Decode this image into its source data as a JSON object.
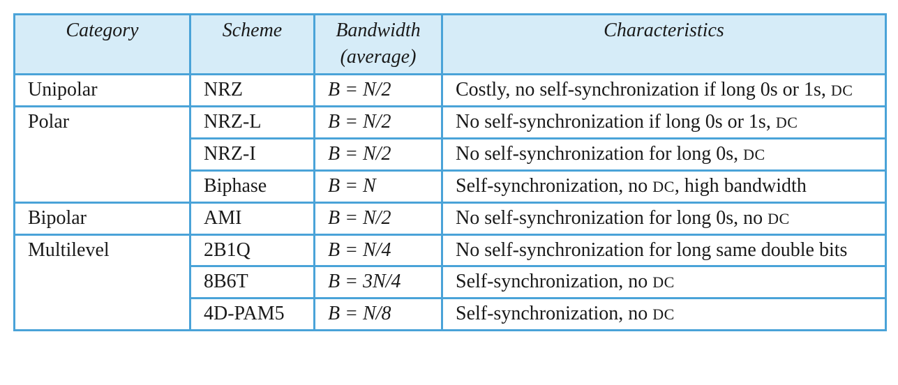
{
  "header": {
    "category": "Category",
    "scheme": "Scheme",
    "bandwidth_line1": "Bandwidth",
    "bandwidth_line2": "(average)",
    "characteristics": "Characteristics"
  },
  "rows": [
    {
      "category": "Unipolar",
      "scheme": "NRZ",
      "bandwidth": "B = N/2",
      "char_text": "Costly, no self-synchronization if long 0s or 1s,",
      "char_dc": "DC"
    },
    {
      "category": "Polar",
      "scheme": "NRZ-L",
      "bandwidth": "B = N/2",
      "char_text": "No self-synchronization if long 0s or 1s,",
      "char_dc": "DC"
    },
    {
      "scheme": "NRZ-I",
      "bandwidth": "B = N/2",
      "char_text": "No self-synchronization for long 0s,",
      "char_dc": "DC"
    },
    {
      "scheme": "Biphase",
      "bandwidth": "B = N",
      "char_text": "Self-synchronization, no",
      "char_dc": "DC",
      "char_tail": ", high bandwidth"
    },
    {
      "category": "Bipolar",
      "scheme": "AMI",
      "bandwidth": "B = N/2",
      "char_text": "No self-synchronization for long 0s, no",
      "char_dc": "DC"
    },
    {
      "category": "Multilevel",
      "scheme": "2B1Q",
      "bandwidth": "B = N/4",
      "char_text": "No self-synchronization for long same double bits"
    },
    {
      "scheme": "8B6T",
      "bandwidth": "B = 3N/4",
      "char_text": "Self-synchronization, no",
      "char_dc": "DC"
    },
    {
      "scheme": "4D-PAM5",
      "bandwidth": "B = N/8",
      "char_text": "Self-synchronization, no",
      "char_dc": "DC"
    }
  ]
}
